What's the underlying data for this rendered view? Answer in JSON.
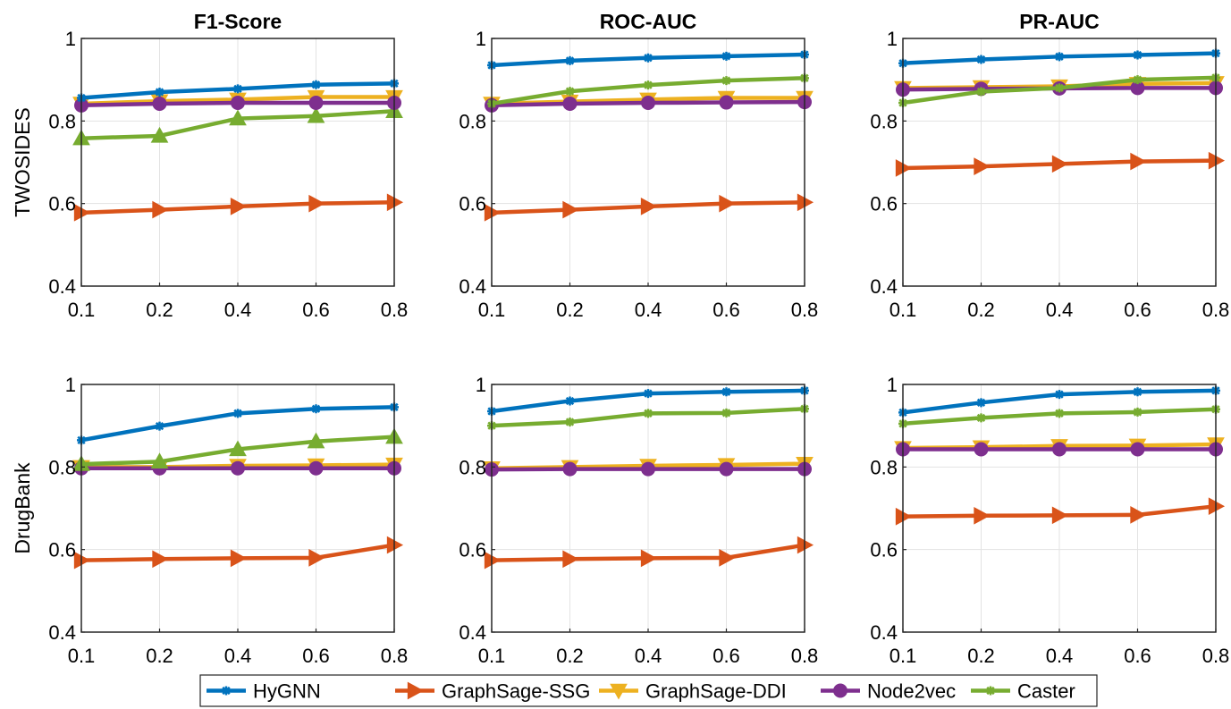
{
  "colors": {
    "HyGNN": "#0072bd",
    "GraphSage-SSG": "#d95319",
    "GraphSage-DDI": "#edb120",
    "Node2vec": "#7e2f8e",
    "Caster": "#77ac30"
  },
  "chart_data": {
    "type": "line",
    "x_labels": [
      "0.1",
      "0.2",
      "0.4",
      "0.6",
      "0.8"
    ],
    "ylim": [
      0.4,
      1
    ],
    "yticks": [
      0.4,
      0.6,
      0.8,
      1
    ],
    "ytick_labels": [
      "0.4",
      "0.6",
      "0.8",
      "1"
    ],
    "grid": true,
    "legend": {
      "placement": "bottom",
      "entries": [
        {
          "name": "HyGNN",
          "marker": "star"
        },
        {
          "name": "GraphSage-SSG",
          "marker": "triangle-right"
        },
        {
          "name": "GraphSage-DDI",
          "marker": "triangle-down"
        },
        {
          "name": "Node2vec",
          "marker": "circle"
        },
        {
          "name": "Caster",
          "marker": "star"
        }
      ]
    },
    "column_titles": [
      "F1-Score",
      "ROC-AUC",
      "PR-AUC"
    ],
    "row_labels": [
      "TWOSIDES",
      "DrugBank"
    ],
    "panels": [
      {
        "row": 0,
        "col": 0,
        "title": "F1-Score",
        "ylabel": "TWOSIDES",
        "series": [
          {
            "name": "Caster",
            "marker": "triangle-up",
            "values": [
              0.758,
              0.764,
              0.806,
              0.812,
              0.824
            ]
          },
          {
            "name": "GraphSage-SSG",
            "marker": "triangle-right",
            "values": [
              0.578,
              0.585,
              0.593,
              0.6,
              0.603
            ]
          },
          {
            "name": "GraphSage-DDI",
            "marker": "triangle-down",
            "values": [
              0.842,
              0.848,
              0.852,
              0.858,
              0.858
            ]
          },
          {
            "name": "Node2vec",
            "marker": "circle",
            "values": [
              0.838,
              0.842,
              0.844,
              0.844,
              0.844
            ]
          },
          {
            "name": "HyGNN",
            "marker": "star",
            "values": [
              0.856,
              0.87,
              0.878,
              0.888,
              0.891
            ]
          }
        ]
      },
      {
        "row": 0,
        "col": 1,
        "title": "ROC-AUC",
        "ylabel": "",
        "series": [
          {
            "name": "GraphSage-SSG",
            "marker": "triangle-right",
            "values": [
              0.578,
              0.585,
              0.593,
              0.6,
              0.603
            ]
          },
          {
            "name": "GraphSage-DDI",
            "marker": "triangle-down",
            "values": [
              0.842,
              0.847,
              0.852,
              0.856,
              0.856
            ]
          },
          {
            "name": "Node2vec",
            "marker": "circle",
            "values": [
              0.838,
              0.842,
              0.844,
              0.845,
              0.846
            ]
          },
          {
            "name": "Caster",
            "marker": "star",
            "values": [
              0.842,
              0.872,
              0.887,
              0.898,
              0.904
            ]
          },
          {
            "name": "HyGNN",
            "marker": "star",
            "values": [
              0.935,
              0.946,
              0.953,
              0.957,
              0.961
            ]
          }
        ]
      },
      {
        "row": 0,
        "col": 2,
        "title": "PR-AUC",
        "ylabel": "",
        "series": [
          {
            "name": "GraphSage-SSG",
            "marker": "triangle-right",
            "values": [
              0.686,
              0.69,
              0.696,
              0.702,
              0.704
            ]
          },
          {
            "name": "GraphSage-DDI",
            "marker": "triangle-down",
            "values": [
              0.88,
              0.882,
              0.884,
              0.89,
              0.892
            ]
          },
          {
            "name": "Node2vec",
            "marker": "circle",
            "values": [
              0.876,
              0.878,
              0.879,
              0.88,
              0.88
            ]
          },
          {
            "name": "Caster",
            "marker": "star",
            "values": [
              0.844,
              0.871,
              0.88,
              0.9,
              0.905
            ]
          },
          {
            "name": "HyGNN",
            "marker": "star",
            "values": [
              0.94,
              0.949,
              0.956,
              0.96,
              0.964
            ]
          }
        ]
      },
      {
        "row": 1,
        "col": 0,
        "title": "",
        "ylabel": "DrugBank",
        "series": [
          {
            "name": "GraphSage-SSG",
            "marker": "triangle-right",
            "values": [
              0.574,
              0.577,
              0.579,
              0.58,
              0.611
            ]
          },
          {
            "name": "GraphSage-DDI",
            "marker": "triangle-down",
            "values": [
              0.8,
              0.8,
              0.803,
              0.804,
              0.806
            ]
          },
          {
            "name": "Node2vec",
            "marker": "circle",
            "values": [
              0.797,
              0.797,
              0.797,
              0.797,
              0.797
            ]
          },
          {
            "name": "Caster",
            "marker": "triangle-up",
            "values": [
              0.807,
              0.813,
              0.843,
              0.862,
              0.873
            ]
          },
          {
            "name": "HyGNN",
            "marker": "star",
            "values": [
              0.865,
              0.899,
              0.93,
              0.941,
              0.945
            ]
          }
        ]
      },
      {
        "row": 1,
        "col": 1,
        "title": "",
        "ylabel": "",
        "series": [
          {
            "name": "GraphSage-SSG",
            "marker": "triangle-right",
            "values": [
              0.574,
              0.577,
              0.579,
              0.58,
              0.611
            ]
          },
          {
            "name": "GraphSage-DDI",
            "marker": "triangle-down",
            "values": [
              0.797,
              0.8,
              0.803,
              0.805,
              0.808
            ]
          },
          {
            "name": "Node2vec",
            "marker": "circle",
            "values": [
              0.794,
              0.795,
              0.795,
              0.795,
              0.795
            ]
          },
          {
            "name": "Caster",
            "marker": "star",
            "values": [
              0.9,
              0.909,
              0.93,
              0.931,
              0.941
            ]
          },
          {
            "name": "HyGNN",
            "marker": "star",
            "values": [
              0.935,
              0.96,
              0.978,
              0.982,
              0.985
            ]
          }
        ]
      },
      {
        "row": 1,
        "col": 2,
        "title": "",
        "ylabel": "",
        "series": [
          {
            "name": "GraphSage-SSG",
            "marker": "triangle-right",
            "values": [
              0.68,
              0.682,
              0.683,
              0.684,
              0.705
            ]
          },
          {
            "name": "GraphSage-DDI",
            "marker": "triangle-down",
            "values": [
              0.846,
              0.848,
              0.851,
              0.852,
              0.855
            ]
          },
          {
            "name": "Node2vec",
            "marker": "circle",
            "values": [
              0.843,
              0.843,
              0.843,
              0.843,
              0.843
            ]
          },
          {
            "name": "Caster",
            "marker": "star",
            "values": [
              0.905,
              0.919,
              0.93,
              0.933,
              0.94
            ]
          },
          {
            "name": "HyGNN",
            "marker": "star",
            "values": [
              0.932,
              0.956,
              0.976,
              0.982,
              0.985
            ]
          }
        ]
      }
    ]
  }
}
